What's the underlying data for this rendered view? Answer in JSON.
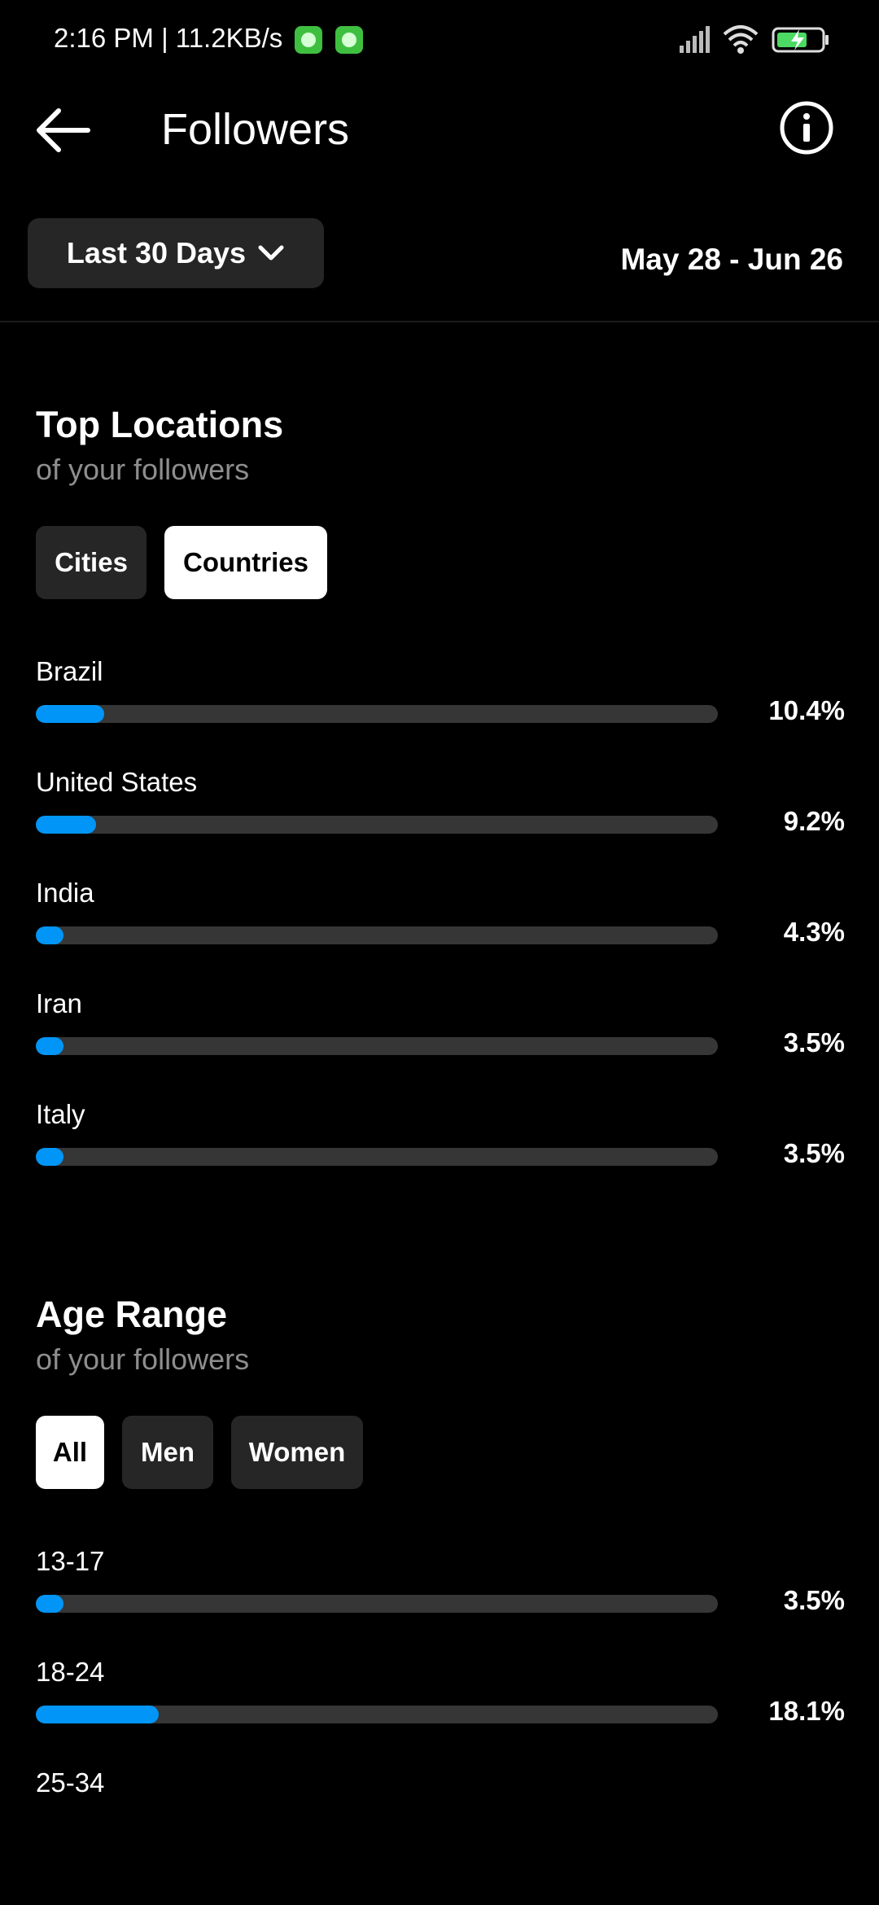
{
  "status": {
    "time": "2:16 PM | 11.2KB/s"
  },
  "header": {
    "title": "Followers"
  },
  "filter": {
    "range_label": "Last 30 Days",
    "date_range": "May 28 - Jun 26"
  },
  "locations": {
    "title": "Top Locations",
    "subtitle": "of your followers",
    "tabs": [
      {
        "label": "Cities",
        "active": false
      },
      {
        "label": "Countries",
        "active": true
      }
    ],
    "items": [
      {
        "label": "Brazil",
        "value": "10.4%",
        "fill": 0.1
      },
      {
        "label": "United States",
        "value": "9.2%",
        "fill": 0.088
      },
      {
        "label": "India",
        "value": "4.3%",
        "fill": 0.04
      },
      {
        "label": "Iran",
        "value": "3.5%",
        "fill": 0.04
      },
      {
        "label": "Italy",
        "value": "3.5%",
        "fill": 0.04
      }
    ]
  },
  "age": {
    "title": "Age Range",
    "subtitle": "of your followers",
    "tabs": [
      {
        "label": "All",
        "active": true
      },
      {
        "label": "Men",
        "active": false
      },
      {
        "label": "Women",
        "active": false
      }
    ],
    "items": [
      {
        "label": "13-17",
        "value": "3.5%",
        "fill": 0.04
      },
      {
        "label": "18-24",
        "value": "18.1%",
        "fill": 0.18
      },
      {
        "label": "25-34"
      }
    ]
  },
  "colors": {
    "accent": "#0095f6",
    "track": "#363636",
    "pill": "#262626"
  }
}
